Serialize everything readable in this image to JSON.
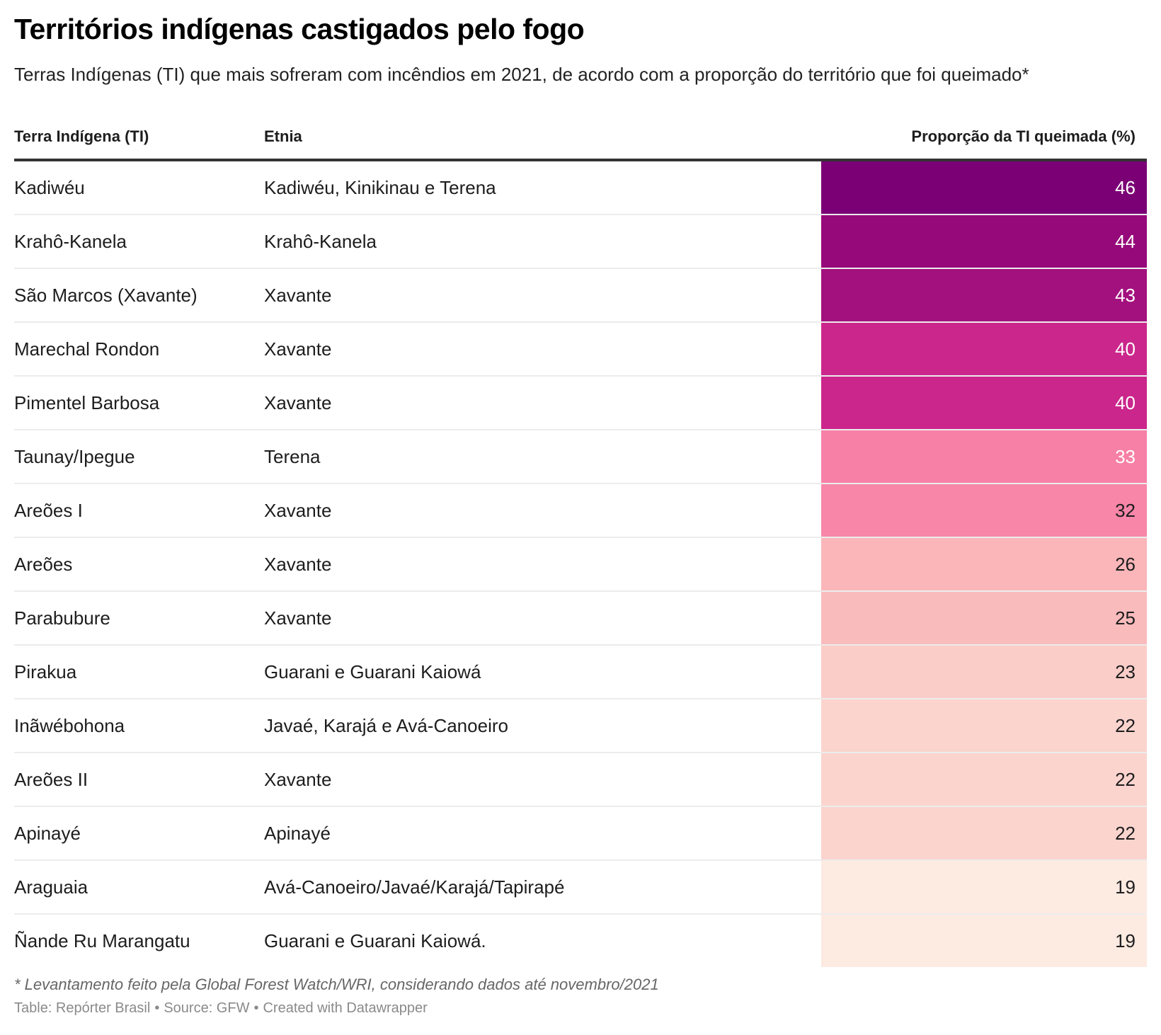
{
  "title": "Territórios indígenas castigados pelo fogo",
  "subtitle": "Terras Indígenas (TI) que mais sofreram com incêndios em 2021, de acordo com a proporção do território que foi queimado*",
  "chart_data": {
    "type": "table",
    "title": "Territórios indígenas castigados pelo fogo",
    "columns": [
      "Terra Indígena (TI)",
      "Etnia",
      "Proporção da TI queimada (%)"
    ],
    "rows": [
      {
        "ti": "Kadiwéu",
        "etnia": "Kadiwéu, Kinikinau e Terena",
        "pct": 46,
        "bg": "#7b0075",
        "fg": "#ffffff"
      },
      {
        "ti": "Krahô-Kanela",
        "etnia": "Krahô-Kanela",
        "pct": 44,
        "bg": "#96097a",
        "fg": "#ffffff"
      },
      {
        "ti": "São Marcos (Xavante)",
        "etnia": "Xavante",
        "pct": 43,
        "bg": "#a3117e",
        "fg": "#ffffff"
      },
      {
        "ti": "Marechal Rondon",
        "etnia": "Xavante",
        "pct": 40,
        "bg": "#cb268b",
        "fg": "#ffffff"
      },
      {
        "ti": "Pimentel Barbosa",
        "etnia": "Xavante",
        "pct": 40,
        "bg": "#cb268b",
        "fg": "#ffffff"
      },
      {
        "ti": "Taunay/Ipegue",
        "etnia": "Terena",
        "pct": 33,
        "bg": "#f780a7",
        "fg": "#ffffff"
      },
      {
        "ti": "Areões I",
        "etnia": "Xavante",
        "pct": 32,
        "bg": "#f786a9",
        "fg": "#1d1d1d"
      },
      {
        "ti": "Areões",
        "etnia": "Xavante",
        "pct": 26,
        "bg": "#fab6b9",
        "fg": "#1d1d1d"
      },
      {
        "ti": "Parabubure",
        "etnia": "Xavante",
        "pct": 25,
        "bg": "#fabbbc",
        "fg": "#1d1d1d"
      },
      {
        "ti": "Pirakua",
        "etnia": "Guarani e Guarani Kaiowá",
        "pct": 23,
        "bg": "#fbcdc8",
        "fg": "#1d1d1d"
      },
      {
        "ti": "Inãwébohona",
        "etnia": "Javaé, Karajá e Avá-Canoeiro",
        "pct": 22,
        "bg": "#fbd4ce",
        "fg": "#1d1d1d"
      },
      {
        "ti": "Areões II",
        "etnia": "Xavante",
        "pct": 22,
        "bg": "#fbd4ce",
        "fg": "#1d1d1d"
      },
      {
        "ti": "Apinayé",
        "etnia": "Apinayé",
        "pct": 22,
        "bg": "#fbd4ce",
        "fg": "#1d1d1d"
      },
      {
        "ti": "Araguaia",
        "etnia": "Avá-Canoeiro/Javaé/Karajá/Tapirapé",
        "pct": 19,
        "bg": "#fdeae1",
        "fg": "#1d1d1d"
      },
      {
        "ti": "Ñande Ru Marangatu",
        "etnia": "Guarani e Guarani Kaiowá.",
        "pct": 19,
        "bg": "#fdeae1",
        "fg": "#1d1d1d"
      }
    ]
  },
  "footer": {
    "note": "* Levantamento feito pela Global Forest Watch/WRI, considerando dados até novembro/2021",
    "table_credit": "Table: Repórter Brasil",
    "source": "Source: GFW",
    "created_with": "Created with Datawrapper",
    "separator": "•"
  }
}
